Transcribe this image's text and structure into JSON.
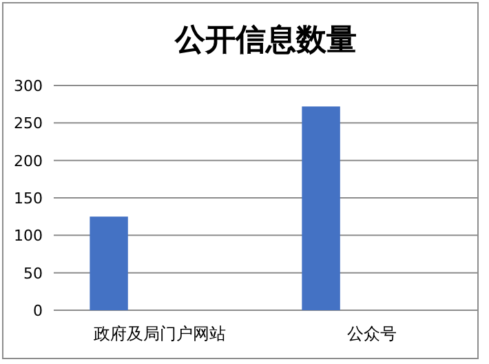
{
  "chart_data": {
    "type": "bar",
    "title": "公开信息数量",
    "categories": [
      "政府及局门户网站",
      "公众号"
    ],
    "series": [
      {
        "color": "#4472c4",
        "values": [
          125,
          272
        ]
      }
    ],
    "ylim": [
      0,
      300
    ],
    "yticks": [
      0,
      50,
      100,
      150,
      200,
      250,
      300
    ],
    "grid": "y"
  }
}
